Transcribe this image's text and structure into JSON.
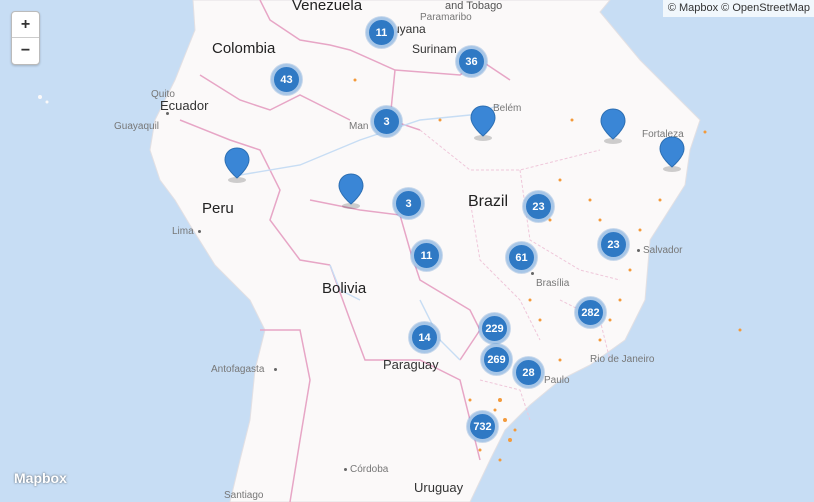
{
  "controls": {
    "zoom_in": "+",
    "zoom_out": "−"
  },
  "attribution": "© Mapbox © OpenStreetMap",
  "logo": "Mapbox",
  "labels": {
    "venezuela": "Venezuela",
    "trinidad": "and Tobago",
    "paramaribo": "Paramaribo",
    "guyana": "uyana",
    "suriname": "Surinam",
    "colombia": "Colombia",
    "quito": "Quito",
    "ecuador": "Ecuador",
    "guayaquil": "Guayaquil",
    "belem": "Belém",
    "manaus": "Man",
    "fortaleza": "Fortaleza",
    "peru": "Peru",
    "lima": "Lima",
    "brazil": "Brazil",
    "salvador": "Salvador",
    "brasilia": "Brasília",
    "bolivia": "Bolivia",
    "paraguay": "Paraguay",
    "rio": "Rio de Janeiro",
    "saopaulo": "Paulo",
    "antofagasta": "Antofagasta",
    "cordoba": "Córdoba",
    "uruguay": "Uruguay",
    "santiago": "Santiago"
  },
  "clusters": [
    {
      "id": "guyana",
      "count": "11"
    },
    {
      "id": "suriname",
      "count": "36"
    },
    {
      "id": "colombia",
      "count": "43"
    },
    {
      "id": "manaus",
      "count": "3"
    },
    {
      "id": "acre",
      "count": "3"
    },
    {
      "id": "northeast",
      "count": "23"
    },
    {
      "id": "bahia",
      "count": "23"
    },
    {
      "id": "mato-grosso",
      "count": "11"
    },
    {
      "id": "goias",
      "count": "61"
    },
    {
      "id": "minas",
      "count": "282"
    },
    {
      "id": "mato-grosso-sul",
      "count": "229"
    },
    {
      "id": "parana",
      "count": "14"
    },
    {
      "id": "sao-paulo-west",
      "count": "269"
    },
    {
      "id": "sao-paulo",
      "count": "28"
    },
    {
      "id": "south",
      "count": "732"
    }
  ],
  "markers": [
    "belem-marker",
    "fortaleza-marker",
    "natal-marker",
    "peru-marker",
    "rondonia-marker"
  ]
}
